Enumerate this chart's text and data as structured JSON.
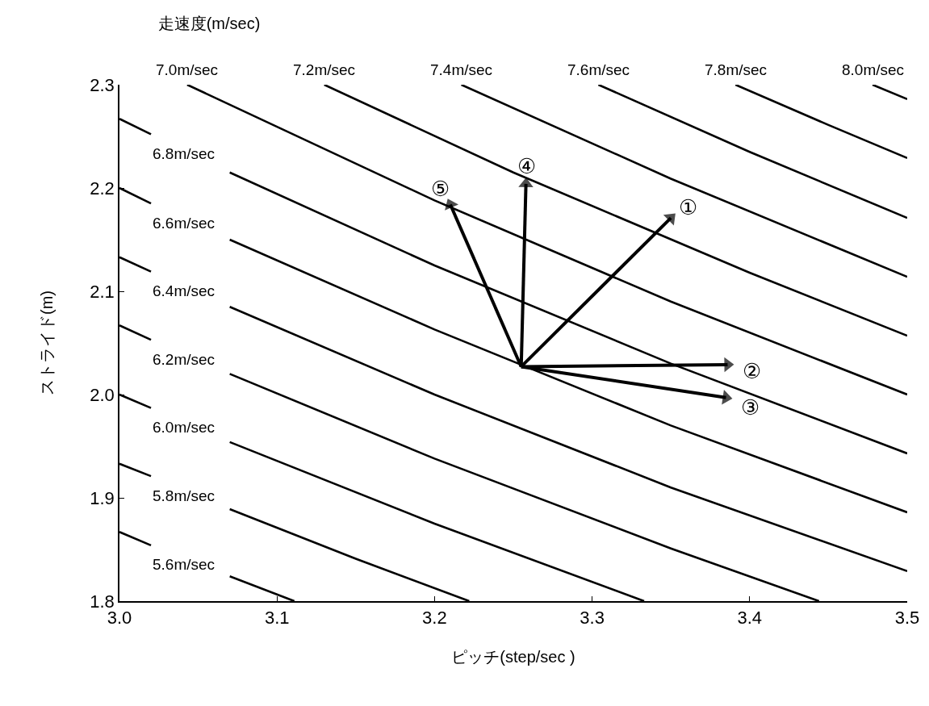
{
  "chart_data": {
    "type": "line",
    "title": "走速度(m/sec)",
    "xlabel": "ピッチ(step/sec )",
    "ylabel": "ストライド(m)",
    "xlim": [
      3.0,
      3.5
    ],
    "xticks": [
      {
        "value": 3.0,
        "label": "3.0"
      },
      {
        "value": 3.1,
        "label": "3.1"
      },
      {
        "value": 3.2,
        "label": "3.2"
      },
      {
        "value": 3.3,
        "label": "3.3"
      },
      {
        "value": 3.4,
        "label": "3.4"
      },
      {
        "value": 3.5,
        "label": "3.5"
      }
    ],
    "ylim": [
      1.8,
      2.3
    ],
    "yticks": [
      1.8,
      1.9,
      {
        "value": 2.0,
        "label": "2.0"
      },
      2.1,
      2.2,
      2.3
    ],
    "legend": false,
    "line_style": "solid",
    "series": [
      {
        "name": "5.6m/sec",
        "color": "#000000",
        "x": [
          3.0,
          3.02,
          3.045,
          3.07,
          3.111
        ],
        "values": [
          1.867,
          1.854,
          null,
          1.824,
          1.8
        ]
      },
      {
        "name": "5.8m/sec",
        "color": "#000000",
        "x": [
          3.0,
          3.02,
          3.045,
          3.07,
          3.15,
          3.222
        ],
        "values": [
          1.933,
          1.921,
          null,
          1.889,
          1.841,
          1.8
        ]
      },
      {
        "name": "6.0m/sec",
        "color": "#000000",
        "x": [
          3.0,
          3.02,
          3.045,
          3.07,
          3.2,
          3.333
        ],
        "values": [
          2.0,
          1.987,
          null,
          1.954,
          1.875,
          1.8
        ]
      },
      {
        "name": "6.2m/sec",
        "color": "#000000",
        "x": [
          3.0,
          3.02,
          3.045,
          3.07,
          3.2,
          3.35,
          3.444
        ],
        "values": [
          2.067,
          2.053,
          null,
          2.02,
          1.938,
          1.851,
          1.8
        ]
      },
      {
        "name": "6.4m/sec",
        "color": "#000000",
        "x": [
          3.0,
          3.02,
          3.045,
          3.07,
          3.2,
          3.35,
          3.5
        ],
        "values": [
          2.133,
          2.119,
          null,
          2.085,
          2.0,
          1.91,
          1.829
        ]
      },
      {
        "name": "6.6m/sec",
        "color": "#000000",
        "x": [
          3.0,
          3.02,
          3.045,
          3.07,
          3.2,
          3.35,
          3.5
        ],
        "values": [
          2.2,
          2.185,
          null,
          2.15,
          2.063,
          1.97,
          1.886
        ]
      },
      {
        "name": "6.8m/sec",
        "color": "#000000",
        "x": [
          3.0,
          3.02,
          3.045,
          3.07,
          3.2,
          3.35,
          3.5
        ],
        "values": [
          2.267,
          2.252,
          null,
          2.215,
          2.125,
          2.03,
          1.943
        ]
      },
      {
        "name": "7.0m/sec",
        "color": "#000000",
        "x": [
          3.043,
          3.2,
          3.35,
          3.5
        ],
        "values": [
          2.3,
          2.188,
          2.09,
          2.0
        ]
      },
      {
        "name": "7.2m/sec",
        "color": "#000000",
        "x": [
          3.13,
          3.25,
          3.4,
          3.5
        ],
        "values": [
          2.3,
          2.215,
          2.118,
          2.057
        ]
      },
      {
        "name": "7.4m/sec",
        "color": "#000000",
        "x": [
          3.217,
          3.35,
          3.5
        ],
        "values": [
          2.3,
          2.209,
          2.114
        ]
      },
      {
        "name": "7.6m/sec",
        "color": "#000000",
        "x": [
          3.304,
          3.4,
          3.5
        ],
        "values": [
          2.3,
          2.235,
          2.171
        ]
      },
      {
        "name": "7.8m/sec",
        "color": "#000000",
        "x": [
          3.391,
          3.45,
          3.5
        ],
        "values": [
          2.3,
          2.261,
          2.229
        ]
      },
      {
        "name": "8.0m/sec",
        "color": "#000000",
        "x": [
          3.478,
          3.5
        ],
        "values": [
          2.3,
          2.286
        ]
      },
      {
        "name": "①",
        "color": "#000000",
        "marker": "triangle",
        "x": [
          3.255,
          3.35
        ],
        "values": [
          2.027,
          2.171
        ]
      },
      {
        "name": "②",
        "color": "#000000",
        "marker": "triangle",
        "x": [
          3.255,
          3.386
        ],
        "values": [
          2.027,
          2.029
        ]
      },
      {
        "name": "③",
        "color": "#000000",
        "marker": "triangle",
        "x": [
          3.255,
          3.385
        ],
        "values": [
          2.027,
          1.997
        ]
      },
      {
        "name": "④",
        "color": "#000000",
        "marker": "triangle",
        "x": [
          3.255,
          3.258
        ],
        "values": [
          2.027,
          2.204
        ]
      },
      {
        "name": "⑤",
        "color": "#000000",
        "marker": "triangle",
        "x": [
          3.255,
          3.21
        ],
        "values": [
          2.027,
          2.184
        ]
      }
    ]
  }
}
